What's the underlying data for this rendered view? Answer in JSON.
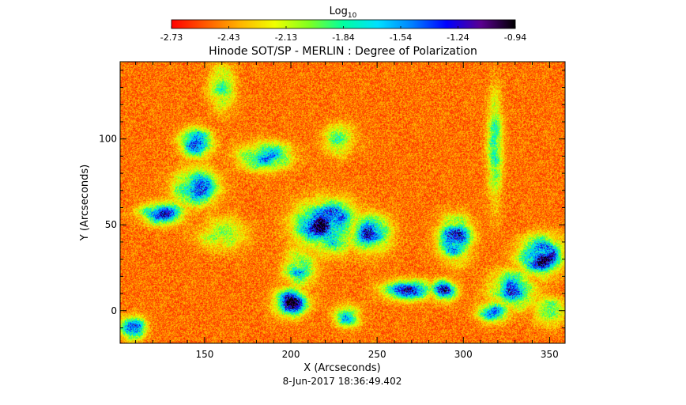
{
  "chart_data": {
    "type": "heatmap",
    "title": "Hinode SOT/SP - MERLIN : Degree of Polarization",
    "xlabel": "X (Arcseconds)",
    "ylabel": "Y (Arcseconds)",
    "timestamp": "8-Jun-2017 18:36:49.402",
    "xlim": [
      101,
      359
    ],
    "ylim": [
      -19,
      145
    ],
    "xticks": [
      150,
      200,
      250,
      300,
      350
    ],
    "yticks": [
      0,
      50,
      100
    ],
    "colorbar": {
      "title": "Log",
      "title_sub": "10",
      "range": [
        -2.73,
        -0.94
      ],
      "ticks": [
        "-2.73",
        "-2.43",
        "-2.13",
        "-1.84",
        "-1.54",
        "-1.24",
        "-0.94"
      ],
      "colormap": "rainbow"
    },
    "background_level": -2.5,
    "strong_regions": [
      {
        "x": 220,
        "y": 50,
        "sx": 11,
        "sy": 9,
        "peak": -1.0
      },
      {
        "x": 245,
        "y": 45,
        "sx": 8,
        "sy": 7,
        "peak": -1.4
      },
      {
        "x": 185,
        "y": 90,
        "sx": 10,
        "sy": 5,
        "peak": -1.5
      },
      {
        "x": 145,
        "y": 98,
        "sx": 6,
        "sy": 5,
        "peak": -1.3
      },
      {
        "x": 125,
        "y": 57,
        "sx": 8,
        "sy": 4,
        "peak": -1.2
      },
      {
        "x": 145,
        "y": 72,
        "sx": 8,
        "sy": 7,
        "peak": -1.35
      },
      {
        "x": 160,
        "y": 45,
        "sx": 9,
        "sy": 6,
        "peak": -1.9
      },
      {
        "x": 200,
        "y": 5,
        "sx": 6,
        "sy": 5,
        "peak": -1.1
      },
      {
        "x": 205,
        "y": 25,
        "sx": 6,
        "sy": 7,
        "peak": -1.7
      },
      {
        "x": 268,
        "y": 12,
        "sx": 10,
        "sy": 4,
        "peak": -1.45
      },
      {
        "x": 295,
        "y": 42,
        "sx": 6,
        "sy": 8,
        "peak": -1.2
      },
      {
        "x": 288,
        "y": 12,
        "sx": 5,
        "sy": 4,
        "peak": -1.35
      },
      {
        "x": 345,
        "y": 32,
        "sx": 8,
        "sy": 7,
        "peak": -1.1
      },
      {
        "x": 328,
        "y": 12,
        "sx": 8,
        "sy": 7,
        "peak": -1.4
      },
      {
        "x": 318,
        "y": 0,
        "sx": 6,
        "sy": 4,
        "peak": -1.25
      },
      {
        "x": 108,
        "y": -10,
        "sx": 5,
        "sy": 4,
        "peak": -1.3
      },
      {
        "x": 160,
        "y": 130,
        "sx": 5,
        "sy": 9,
        "peak": -1.9
      },
      {
        "x": 228,
        "y": 100,
        "sx": 6,
        "sy": 6,
        "peak": -1.9
      },
      {
        "x": 318,
        "y": 95,
        "sx": 3,
        "sy": 20,
        "peak": -1.8
      },
      {
        "x": 232,
        "y": -3,
        "sx": 5,
        "sy": 4,
        "peak": -1.6
      },
      {
        "x": 350,
        "y": 0,
        "sx": 6,
        "sy": 5,
        "peak": -1.7
      }
    ]
  }
}
